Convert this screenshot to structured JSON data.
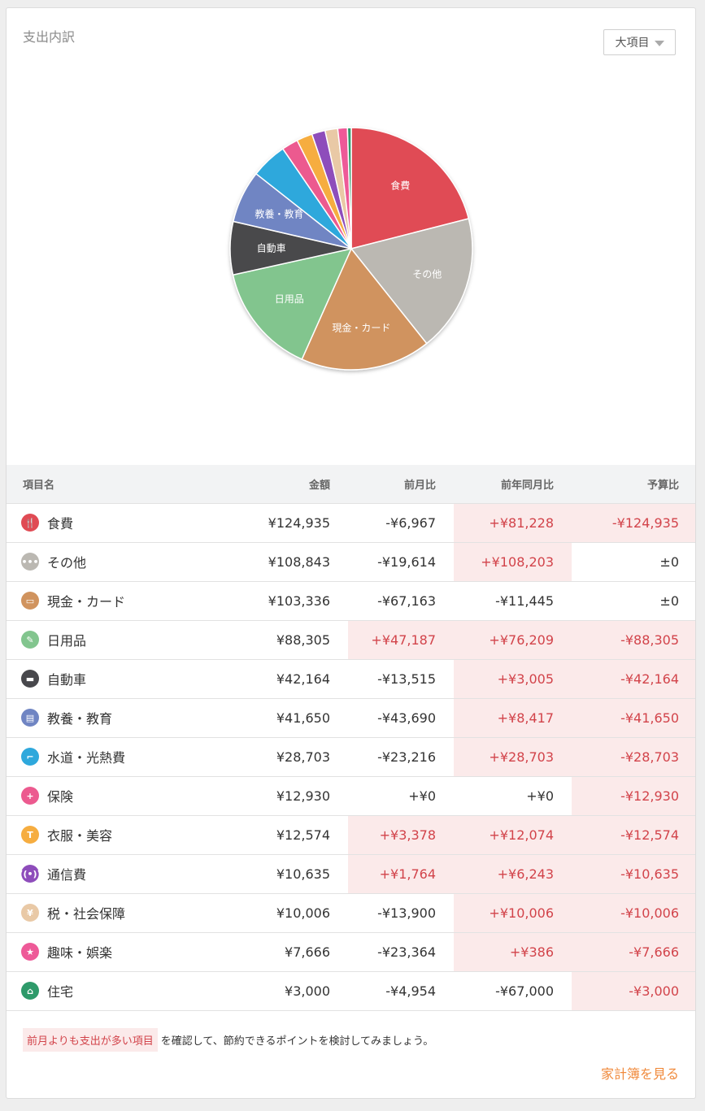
{
  "card": {
    "title": "支出内訳",
    "dropdown_label": "大項目"
  },
  "chart_data": {
    "type": "pie",
    "slices": [
      {
        "label": "食費",
        "value": 124935,
        "color": "#e04b54",
        "show_label": true
      },
      {
        "label": "その他",
        "value": 108843,
        "color": "#bbb8b2",
        "show_label": true
      },
      {
        "label": "現金・カード",
        "value": 103336,
        "color": "#d0935e",
        "show_label": true
      },
      {
        "label": "日用品",
        "value": 88305,
        "color": "#82c58e",
        "show_label": true
      },
      {
        "label": "自動車",
        "value": 42164,
        "color": "#48484c",
        "show_label": true
      },
      {
        "label": "教養・教育",
        "value": 41650,
        "color": "#7085c3",
        "show_label": true
      },
      {
        "label": "水道・光熱費",
        "value": 28703,
        "color": "#2ea8dc",
        "show_label": false
      },
      {
        "label": "保険",
        "value": 12930,
        "color": "#ec5a8f",
        "show_label": false
      },
      {
        "label": "衣服・美容",
        "value": 12574,
        "color": "#f6ad40",
        "show_label": false
      },
      {
        "label": "通信費",
        "value": 10635,
        "color": "#8e4dbb",
        "show_label": false
      },
      {
        "label": "税・社会保障",
        "value": 10006,
        "color": "#e9c9a6",
        "show_label": false
      },
      {
        "label": "趣味・娯楽",
        "value": 7666,
        "color": "#ee5a98",
        "show_label": false
      },
      {
        "label": "住宅",
        "value": 3000,
        "color": "#2e9a6a",
        "show_label": false
      }
    ]
  },
  "table": {
    "headers": [
      "項目名",
      "金額",
      "前月比",
      "前年同月比",
      "予算比"
    ],
    "rows": [
      {
        "name": "食費",
        "icon": "fork-knife-icon",
        "glyph": "🍴",
        "color": "#e04b54",
        "amount": "¥124,935",
        "mom": "-¥6,967",
        "mom_hl": false,
        "yoy": "+¥81,228",
        "yoy_hl": true,
        "budget": "-¥124,935",
        "budget_hl": true
      },
      {
        "name": "その他",
        "icon": "dots-icon",
        "glyph": "•••",
        "color": "#bbb8b2",
        "amount": "¥108,843",
        "mom": "-¥19,614",
        "mom_hl": false,
        "yoy": "+¥108,203",
        "yoy_hl": true,
        "budget": "±0",
        "budget_hl": false
      },
      {
        "name": "現金・カード",
        "icon": "wallet-icon",
        "glyph": "▭",
        "color": "#d0935e",
        "amount": "¥103,336",
        "mom": "-¥67,163",
        "mom_hl": false,
        "yoy": "-¥11,445",
        "yoy_hl": false,
        "budget": "±0",
        "budget_hl": false
      },
      {
        "name": "日用品",
        "icon": "pen-icon",
        "glyph": "✎",
        "color": "#82c58e",
        "amount": "¥88,305",
        "mom": "+¥47,187",
        "mom_hl": true,
        "yoy": "+¥76,209",
        "yoy_hl": true,
        "budget": "-¥88,305",
        "budget_hl": true
      },
      {
        "name": "自動車",
        "icon": "car-icon",
        "glyph": "▬",
        "color": "#48484c",
        "amount": "¥42,164",
        "mom": "-¥13,515",
        "mom_hl": false,
        "yoy": "+¥3,005",
        "yoy_hl": true,
        "budget": "-¥42,164",
        "budget_hl": true
      },
      {
        "name": "教養・教育",
        "icon": "book-icon",
        "glyph": "▤",
        "color": "#7085c3",
        "amount": "¥41,650",
        "mom": "-¥43,690",
        "mom_hl": false,
        "yoy": "+¥8,417",
        "yoy_hl": true,
        "budget": "-¥41,650",
        "budget_hl": true
      },
      {
        "name": "水道・光熱費",
        "icon": "faucet-icon",
        "glyph": "⌐",
        "color": "#2ea8dc",
        "amount": "¥28,703",
        "mom": "-¥23,216",
        "mom_hl": false,
        "yoy": "+¥28,703",
        "yoy_hl": true,
        "budget": "-¥28,703",
        "budget_hl": true
      },
      {
        "name": "保険",
        "icon": "medical-icon",
        "glyph": "+",
        "color": "#ec5a8f",
        "amount": "¥12,930",
        "mom": "+¥0",
        "mom_hl": false,
        "yoy": "+¥0",
        "yoy_hl": false,
        "budget": "-¥12,930",
        "budget_hl": true
      },
      {
        "name": "衣服・美容",
        "icon": "shirt-icon",
        "glyph": "T",
        "color": "#f6ad40",
        "amount": "¥12,574",
        "mom": "+¥3,378",
        "mom_hl": true,
        "yoy": "+¥12,074",
        "yoy_hl": true,
        "budget": "-¥12,574",
        "budget_hl": true
      },
      {
        "name": "通信費",
        "icon": "antenna-icon",
        "glyph": "((•))",
        "color": "#8e4dbb",
        "amount": "¥10,635",
        "mom": "+¥1,764",
        "mom_hl": true,
        "yoy": "+¥6,243",
        "yoy_hl": true,
        "budget": "-¥10,635",
        "budget_hl": true
      },
      {
        "name": "税・社会保障",
        "icon": "tax-icon",
        "glyph": "¥",
        "color": "#e9c9a6",
        "amount": "¥10,006",
        "mom": "-¥13,900",
        "mom_hl": false,
        "yoy": "+¥10,006",
        "yoy_hl": true,
        "budget": "-¥10,006",
        "budget_hl": true
      },
      {
        "name": "趣味・娯楽",
        "icon": "star-icon",
        "glyph": "★",
        "color": "#ee5a98",
        "amount": "¥7,666",
        "mom": "-¥23,364",
        "mom_hl": false,
        "yoy": "+¥386",
        "yoy_hl": true,
        "budget": "-¥7,666",
        "budget_hl": true
      },
      {
        "name": "住宅",
        "icon": "house-icon",
        "glyph": "⌂",
        "color": "#2e9a6a",
        "amount": "¥3,000",
        "mom": "-¥4,954",
        "mom_hl": false,
        "yoy": "-¥67,000",
        "yoy_hl": false,
        "budget": "-¥3,000",
        "budget_hl": true
      }
    ]
  },
  "footer": {
    "highlight_text": "前月よりも支出が多い項目",
    "note_text": "を確認して、節約できるポイントを検討してみましょう。",
    "link_text": "家計簿を見る"
  }
}
